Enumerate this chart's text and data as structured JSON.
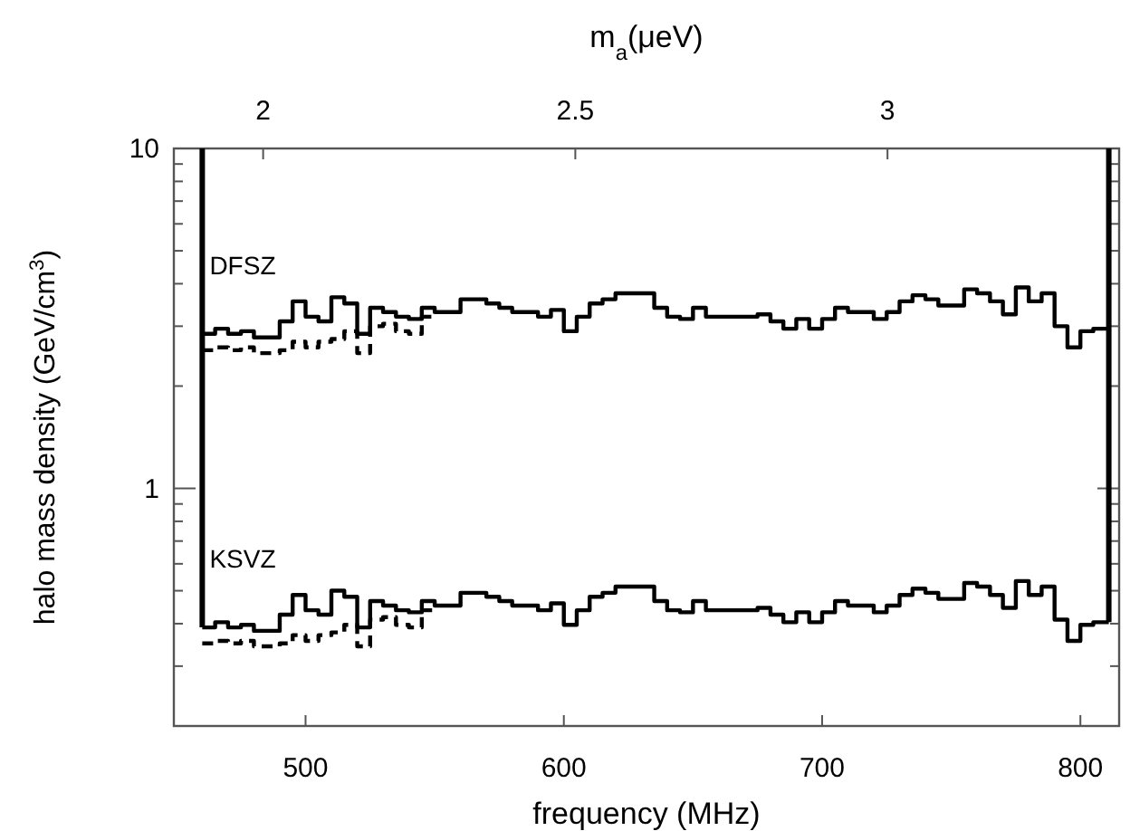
{
  "chart_data": {
    "type": "step",
    "xlabel": "frequency (MHz)",
    "ylabel": "halo mass density (GeV/cm$^{3}$)",
    "x2label": "m$_{a}$(μeV)",
    "xlim": [
      449,
      815
    ],
    "xticks": [
      500,
      600,
      700,
      800
    ],
    "x2lim": [
      1.857,
      3.371
    ],
    "x2ticks": [
      2,
      2.5,
      3
    ],
    "ylim": [
      0.2,
      10
    ],
    "log": true,
    "yticks": [
      {
        "value": 0.3,
        "label": null
      },
      {
        "value": 0.4,
        "label": null
      },
      {
        "value": 0.5,
        "label": null
      },
      {
        "value": 0.6,
        "label": null
      },
      {
        "value": 0.7,
        "label": null
      },
      {
        "value": 0.8,
        "label": null
      },
      {
        "value": 0.9,
        "label": null
      },
      1,
      {
        "value": 2,
        "label": null
      },
      {
        "value": 3,
        "label": null
      },
      {
        "value": 4,
        "label": null
      },
      {
        "value": 5,
        "label": null
      },
      {
        "value": 6,
        "label": null
      },
      {
        "value": 7,
        "label": null
      },
      {
        "value": 8,
        "label": null
      },
      {
        "value": 9,
        "label": null
      },
      10
    ],
    "grid": false,
    "ref_lines": [
      {
        "axis": "x",
        "value": 460,
        "color": "#000000"
      },
      {
        "axis": "x",
        "value": 811,
        "color": "#000000"
      }
    ],
    "series": [
      {
        "name": "DFSZ",
        "color": "#000000",
        "line_style": "solid",
        "x": [
          460,
          465,
          470,
          475,
          480,
          485,
          490,
          495,
          500,
          505,
          510,
          515,
          520,
          525,
          530,
          535,
          540,
          545,
          550,
          555,
          560,
          565,
          570,
          575,
          580,
          585,
          590,
          595,
          600,
          605,
          610,
          615,
          620,
          625,
          630,
          635,
          640,
          645,
          650,
          655,
          660,
          665,
          670,
          675,
          680,
          685,
          690,
          695,
          700,
          705,
          710,
          715,
          720,
          725,
          730,
          735,
          740,
          745,
          750,
          755,
          760,
          765,
          770,
          775,
          780,
          785,
          790,
          795,
          800,
          805,
          811
        ],
        "values": [
          2.85,
          2.95,
          2.85,
          2.9,
          2.78,
          2.78,
          3.1,
          3.55,
          3.2,
          3.1,
          3.65,
          3.5,
          2.85,
          3.4,
          3.3,
          3.2,
          3.15,
          3.4,
          3.3,
          3.3,
          3.6,
          3.6,
          3.5,
          3.4,
          3.3,
          3.3,
          3.2,
          3.35,
          2.9,
          3.2,
          3.5,
          3.6,
          3.75,
          3.75,
          3.75,
          3.4,
          3.2,
          3.15,
          3.4,
          3.2,
          3.2,
          3.2,
          3.2,
          3.25,
          3.1,
          2.95,
          3.15,
          2.95,
          3.15,
          3.4,
          3.3,
          3.3,
          3.15,
          3.3,
          3.55,
          3.7,
          3.6,
          3.45,
          3.45,
          3.85,
          3.75,
          3.55,
          3.25,
          3.9,
          3.55,
          3.75,
          3.0,
          2.6,
          2.9,
          2.95,
          2.95
        ]
      },
      {
        "color": "#000000",
        "line_style": "dashed",
        "x": [
          460,
          465,
          470,
          475,
          480,
          485,
          490,
          495,
          500,
          505,
          510,
          515,
          520,
          525,
          530,
          535,
          540,
          545,
          549
        ],
        "values": [
          2.55,
          2.6,
          2.55,
          2.6,
          2.5,
          2.5,
          2.55,
          2.7,
          2.6,
          2.7,
          2.75,
          2.9,
          2.5,
          3.0,
          3.05,
          2.9,
          2.85,
          3.2,
          3.2
        ]
      },
      {
        "name": "KSVZ",
        "color": "#000000",
        "line_style": "solid",
        "x": [
          460,
          465,
          470,
          475,
          480,
          485,
          490,
          495,
          500,
          505,
          510,
          515,
          520,
          525,
          530,
          535,
          540,
          545,
          550,
          555,
          560,
          565,
          570,
          575,
          580,
          585,
          590,
          595,
          600,
          605,
          610,
          615,
          620,
          625,
          630,
          635,
          640,
          645,
          650,
          655,
          660,
          665,
          670,
          675,
          680,
          685,
          690,
          695,
          700,
          705,
          710,
          715,
          720,
          725,
          730,
          735,
          740,
          745,
          750,
          755,
          760,
          765,
          770,
          775,
          780,
          785,
          790,
          795,
          800,
          805,
          811
        ],
        "values": [
          0.39,
          0.404,
          0.39,
          0.397,
          0.381,
          0.381,
          0.425,
          0.486,
          0.438,
          0.425,
          0.5,
          0.48,
          0.39,
          0.466,
          0.452,
          0.438,
          0.432,
          0.466,
          0.452,
          0.452,
          0.493,
          0.493,
          0.48,
          0.466,
          0.452,
          0.452,
          0.438,
          0.459,
          0.397,
          0.438,
          0.48,
          0.493,
          0.514,
          0.514,
          0.514,
          0.466,
          0.438,
          0.432,
          0.466,
          0.438,
          0.438,
          0.438,
          0.438,
          0.445,
          0.425,
          0.404,
          0.432,
          0.404,
          0.432,
          0.466,
          0.452,
          0.452,
          0.432,
          0.452,
          0.486,
          0.507,
          0.493,
          0.473,
          0.473,
          0.527,
          0.514,
          0.486,
          0.445,
          0.534,
          0.486,
          0.514,
          0.411,
          0.356,
          0.397,
          0.404,
          0.404
        ]
      },
      {
        "color": "#000000",
        "line_style": "dashed",
        "x": [
          460,
          465,
          470,
          475,
          480,
          485,
          490,
          495,
          500,
          505,
          510,
          515,
          520,
          525,
          530,
          535,
          540,
          545,
          549
        ],
        "values": [
          0.35,
          0.356,
          0.35,
          0.356,
          0.343,
          0.343,
          0.35,
          0.37,
          0.356,
          0.37,
          0.377,
          0.397,
          0.343,
          0.411,
          0.418,
          0.397,
          0.39,
          0.438,
          0.438
        ]
      }
    ]
  }
}
